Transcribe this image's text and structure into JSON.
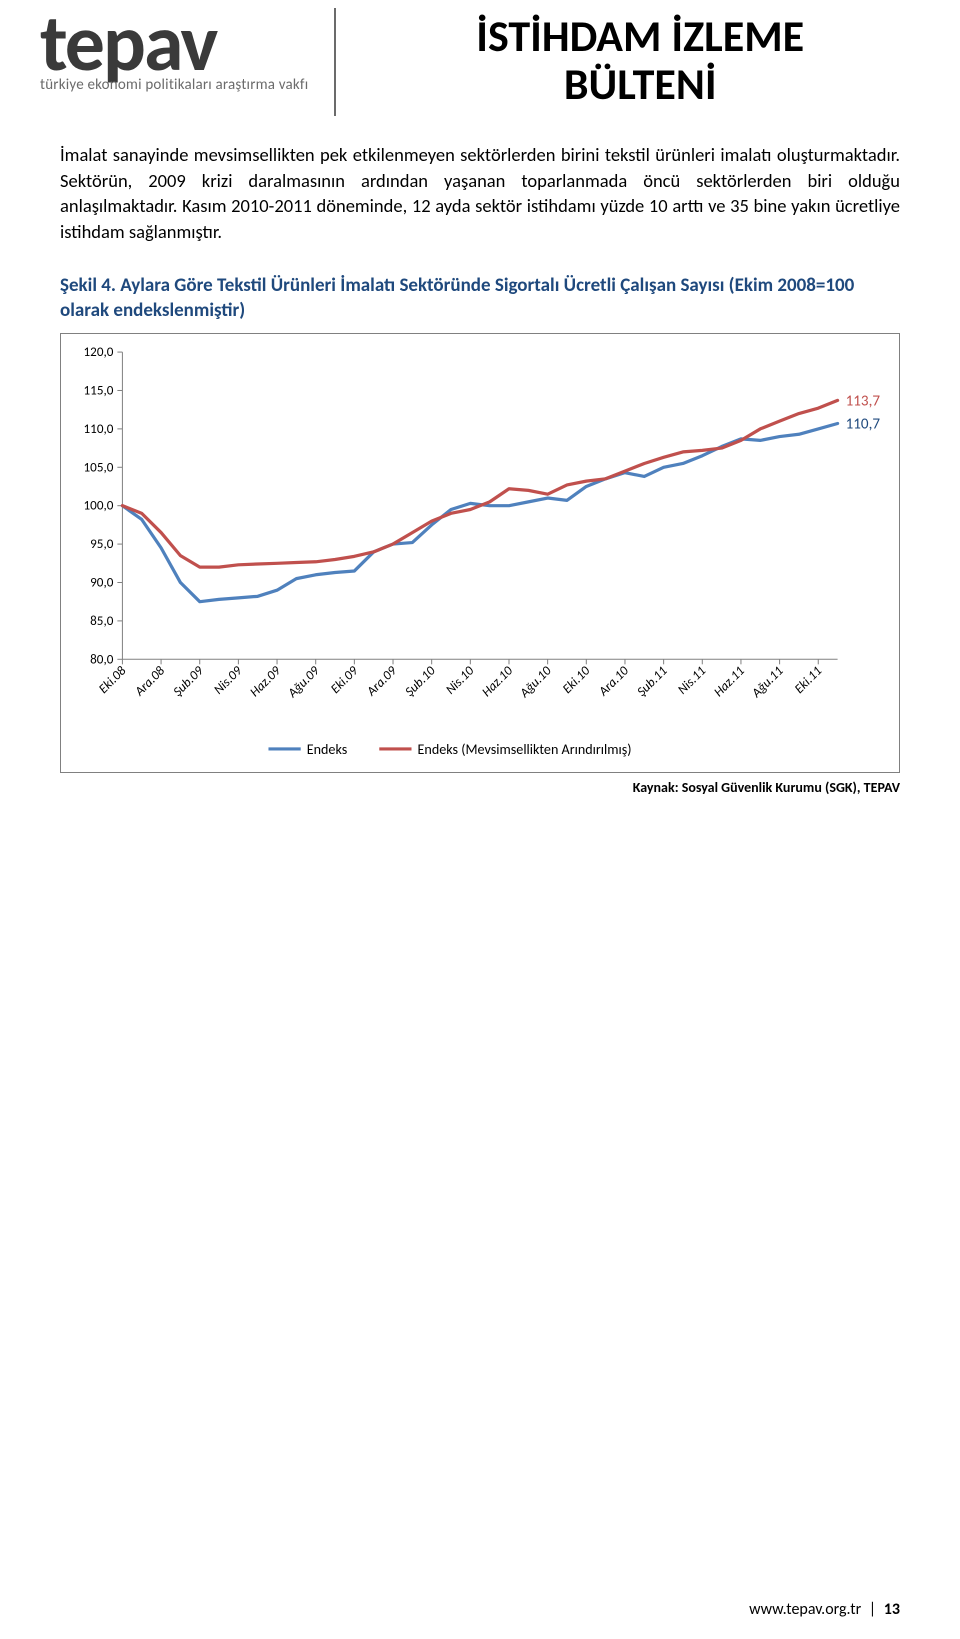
{
  "header": {
    "logo_word": "tepav",
    "logo_subtitle": "türkiye ekonomi politikaları araştırma vakfı",
    "title_line1": "İSTİHDAM İZLEME",
    "title_line2": "BÜLTENİ"
  },
  "paragraph": "İmalat sanayinde mevsimsellikten pek etkilenmeyen sektörlerden birini tekstil ürünleri imalatı oluşturmaktadır. Sektörün, 2009 krizi daralmasının ardından yaşanan toparlanmada öncü sektörlerden biri olduğu anlaşılmaktadır. Kasım 2010-2011 döneminde, 12 ayda sektör istihdamı yüzde 10 arttı ve 35 bine yakın ücretliye istihdam sağlanmıştır.",
  "figure_title": "Şekil 4. Aylara Göre Tekstil Ürünleri İmalatı Sektöründe Sigortalı Ücretli Çalışan Sayısı (Ekim 2008=100 olarak endekslenmiştir)",
  "chart": {
    "type": "line",
    "x_labels": [
      "Eki.08",
      "Ara.08",
      "Şub.09",
      "Nis.09",
      "Haz.09",
      "Ağu.09",
      "Eki.09",
      "Ara.09",
      "Şub.10",
      "Nis.10",
      "Haz.10",
      "Ağu.10",
      "Eki.10",
      "Ara.10",
      "Şub.11",
      "Nis.11",
      "Haz.11",
      "Ağu.11",
      "Eki.11"
    ],
    "x_label_rotation_deg": -45,
    "y_ticks": [
      80,
      85,
      90,
      95,
      100,
      105,
      110,
      115,
      120
    ],
    "y_tick_labels": [
      "80,0",
      "85,0",
      "90,0",
      "95,0",
      "100,0",
      "105,0",
      "110,0",
      "115,0",
      "120,0"
    ],
    "ylim": [
      80,
      120
    ],
    "series": [
      {
        "name": "Endeks",
        "color": "#4f81bd",
        "line_width": 3.2,
        "y": [
          100.0,
          98.2,
          94.5,
          90.0,
          87.5,
          87.8,
          88.0,
          88.2,
          89.0,
          90.5,
          91.0,
          91.3,
          91.5,
          94.0,
          95.0,
          95.2,
          97.5,
          99.5,
          100.3,
          100.0,
          100.0,
          100.5,
          101.0,
          100.7,
          102.5,
          103.5,
          104.3,
          103.8,
          105.0,
          105.5,
          106.5,
          107.7,
          108.7,
          108.5,
          109.0,
          109.3,
          110.0,
          110.7
        ],
        "end_label": "110,7",
        "end_label_color": "#1f497d"
      },
      {
        "name": "Endeks (Mevsimsellikten Arındırılmış)",
        "color": "#c0504d",
        "line_width": 3.2,
        "y": [
          100.0,
          99.0,
          96.5,
          93.5,
          92.0,
          92.0,
          92.3,
          92.4,
          92.5,
          92.6,
          92.7,
          93.0,
          93.4,
          94.0,
          95.0,
          96.5,
          98.0,
          99.0,
          99.5,
          100.5,
          102.2,
          102.0,
          101.5,
          102.7,
          103.2,
          103.5,
          104.5,
          105.5,
          106.3,
          107.0,
          107.2,
          107.5,
          108.5,
          110.0,
          111.0,
          112.0,
          112.7,
          113.7
        ],
        "end_label": "113,7",
        "end_label_color": "#c0504d"
      }
    ],
    "legend": {
      "items": [
        {
          "label": "Endeks",
          "color": "#4f81bd"
        },
        {
          "label": "Endeks (Mevsimsellikten Arındırılmış)",
          "color": "#c0504d"
        }
      ],
      "position": "bottom-center"
    },
    "axis_color": "#808080",
    "background_color": "#ffffff",
    "label_fontsize": 13,
    "tick_fontsize": 13
  },
  "source_line": "Kaynak: Sosyal Güvenlik Kurumu (SGK), TEPAV",
  "footer": {
    "url": "www.tepav.org.tr",
    "separator": "|",
    "page": "13"
  }
}
